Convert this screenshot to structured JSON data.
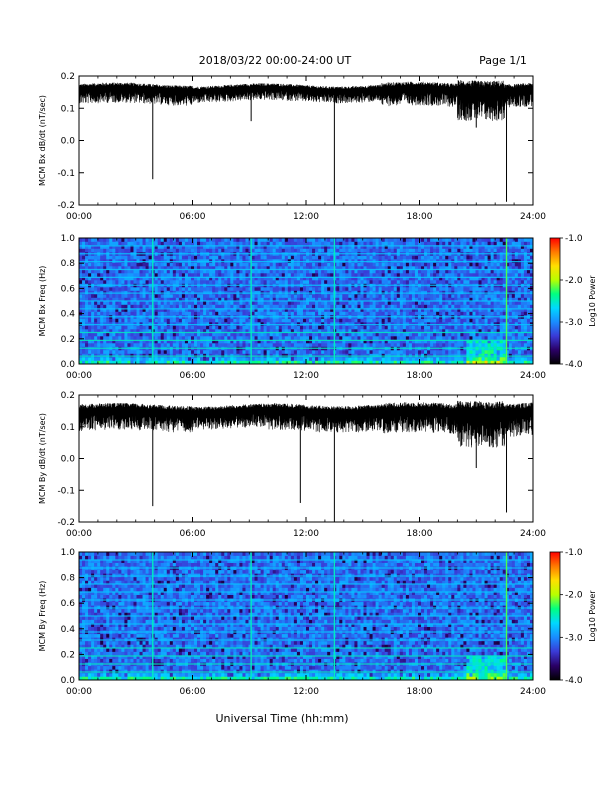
{
  "header": {
    "title": "2018/03/22  00:00-24:00 UT",
    "page": "Page 1/1"
  },
  "xlabel": "Universal Time (hh:mm)",
  "colors": {
    "trace": "#000000",
    "colormap": [
      "#000000",
      "#2a0066",
      "#3a3ad6",
      "#1a8cff",
      "#00d8ff",
      "#00ff80",
      "#b8ff00",
      "#ffe000",
      "#ff7a00",
      "#ff0000"
    ]
  },
  "chart_data": [
    {
      "type": "line",
      "id": "bx-time",
      "ylabel": "MCM Bx dB/dt (nT/sec)",
      "ylim": [
        -0.2,
        0.2
      ],
      "xlim": [
        0,
        24
      ],
      "xticks": [
        "00:00",
        "06:00",
        "12:00",
        "18:00",
        "24:00"
      ],
      "yticks": [
        "-0.2",
        "-0.1",
        "0.0",
        "0.1",
        "0.2"
      ],
      "baseline": 0.16,
      "noise": [
        {
          "x": [
            0,
            3
          ],
          "amp": 0.03
        },
        {
          "x": [
            3,
            6
          ],
          "amp": 0.03
        },
        {
          "x": [
            6,
            10
          ],
          "amp": 0.025
        },
        {
          "x": [
            10,
            16
          ],
          "amp": 0.025
        },
        {
          "x": [
            16,
            20
          ],
          "amp": 0.035
        },
        {
          "x": [
            20,
            22.5
          ],
          "amp": 0.06
        },
        {
          "x": [
            22.5,
            24
          ],
          "amp": 0.035
        }
      ],
      "spikes": [
        {
          "x": 3.9,
          "y": -0.12
        },
        {
          "x": 9.1,
          "y": 0.06
        },
        {
          "x": 13.5,
          "y": -0.2
        },
        {
          "x": 21.0,
          "y": 0.04
        },
        {
          "x": 22.6,
          "y": -0.19
        }
      ]
    },
    {
      "type": "heatmap",
      "id": "bx-spec",
      "ylabel": "MCM Bx Freq (Hz)",
      "ylim": [
        0.0,
        1.0
      ],
      "xlim": [
        0,
        24
      ],
      "xticks": [
        "00:00",
        "06:00",
        "12:00",
        "18:00",
        "24:00"
      ],
      "yticks": [
        "0.0",
        "0.2",
        "0.4",
        "0.6",
        "0.8",
        "1.0"
      ],
      "colorbar": {
        "label": "Log10 Power",
        "range": [
          -4.0,
          -1.0
        ],
        "ticks": [
          "-4.0",
          "-3.0",
          "-2.0",
          "-1.0"
        ]
      },
      "harmonic_spacing_hz": 0.0625,
      "vertical_lines_h": [
        3.9,
        9.1,
        13.5,
        22.6
      ],
      "hot_region": {
        "x": [
          20.5,
          22.5
        ],
        "y": [
          0.0,
          0.2
        ]
      }
    },
    {
      "type": "line",
      "id": "by-time",
      "ylabel": "MCM By dB/dt (nT/sec)",
      "ylim": [
        -0.2,
        0.2
      ],
      "xlim": [
        0,
        24
      ],
      "xticks": [
        "00:00",
        "06:00",
        "12:00",
        "18:00",
        "24:00"
      ],
      "yticks": [
        "-0.2",
        "-0.1",
        "0.0",
        "0.1",
        "0.2"
      ],
      "baseline": 0.15,
      "noise": [
        {
          "x": [
            0,
            3
          ],
          "amp": 0.04
        },
        {
          "x": [
            3,
            6
          ],
          "amp": 0.04
        },
        {
          "x": [
            6,
            10
          ],
          "amp": 0.035
        },
        {
          "x": [
            10,
            16
          ],
          "amp": 0.04
        },
        {
          "x": [
            16,
            20
          ],
          "amp": 0.045
        },
        {
          "x": [
            20,
            22.5
          ],
          "amp": 0.07
        },
        {
          "x": [
            22.5,
            24
          ],
          "amp": 0.05
        }
      ],
      "spikes": [
        {
          "x": 3.9,
          "y": -0.15
        },
        {
          "x": 11.7,
          "y": -0.14
        },
        {
          "x": 13.5,
          "y": -0.2
        },
        {
          "x": 21.0,
          "y": -0.03
        },
        {
          "x": 22.6,
          "y": -0.17
        }
      ]
    },
    {
      "type": "heatmap",
      "id": "by-spec",
      "ylabel": "MCM By Freq (Hz)",
      "ylim": [
        0.0,
        1.0
      ],
      "xlim": [
        0,
        24
      ],
      "xticks": [
        "00:00",
        "06:00",
        "12:00",
        "18:00",
        "24:00"
      ],
      "yticks": [
        "0.0",
        "0.2",
        "0.4",
        "0.6",
        "0.8",
        "1.0"
      ],
      "colorbar": {
        "label": "Log10 Power",
        "range": [
          -4.0,
          -1.0
        ],
        "ticks": [
          "-4.0",
          "-3.0",
          "-2.0",
          "-1.0"
        ]
      },
      "harmonic_spacing_hz": 0.0625,
      "vertical_lines_h": [
        3.9,
        9.1,
        13.5,
        22.6
      ],
      "hot_region": {
        "x": [
          20.5,
          22.5
        ],
        "y": [
          0.0,
          0.2
        ]
      }
    }
  ]
}
